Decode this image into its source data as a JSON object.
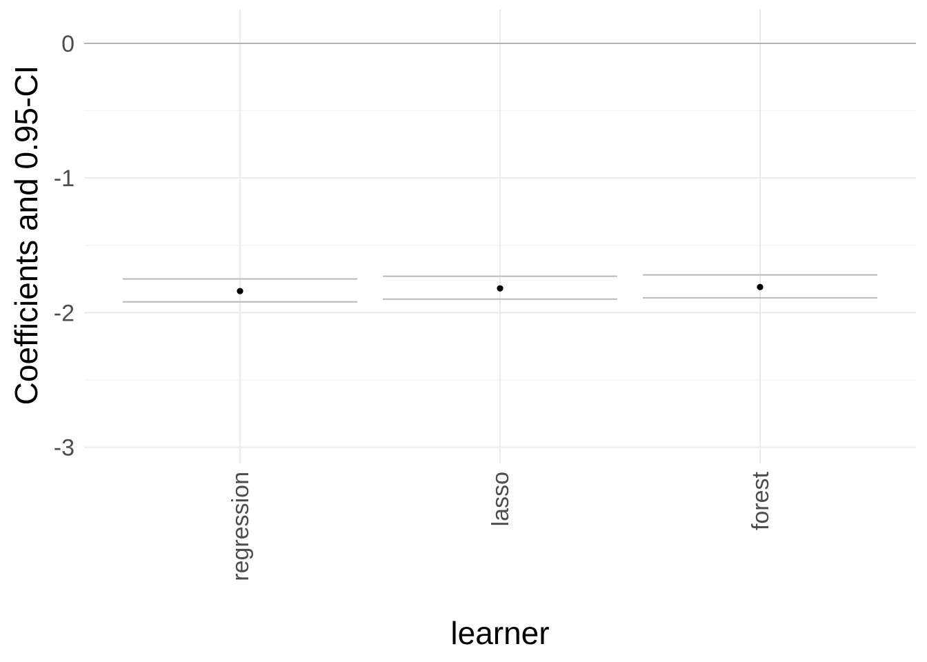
{
  "chart_data": {
    "type": "scatter",
    "xlabel": "learner",
    "ylabel": "Coefficients and 0.95-CI",
    "categories": [
      "regression",
      "lasso",
      "forest"
    ],
    "series": [
      {
        "estimate": [
          -1.84,
          -1.82,
          -1.81
        ],
        "ci_lower": [
          -1.92,
          -1.9,
          -1.89
        ],
        "ci_upper": [
          -1.75,
          -1.73,
          -1.72
        ]
      }
    ],
    "reference_line_y": 0,
    "ylim": [
      -3.12,
      0.25
    ],
    "yticks": [
      0,
      -1,
      -2,
      -3
    ],
    "ytick_labels": [
      "0",
      "-1",
      "-2",
      "-3"
    ],
    "grid": true,
    "colors": {
      "point": "#000000",
      "ci": "#b8b8b8",
      "reference": "#a6a6a6",
      "grid": "#ebebeb"
    }
  }
}
